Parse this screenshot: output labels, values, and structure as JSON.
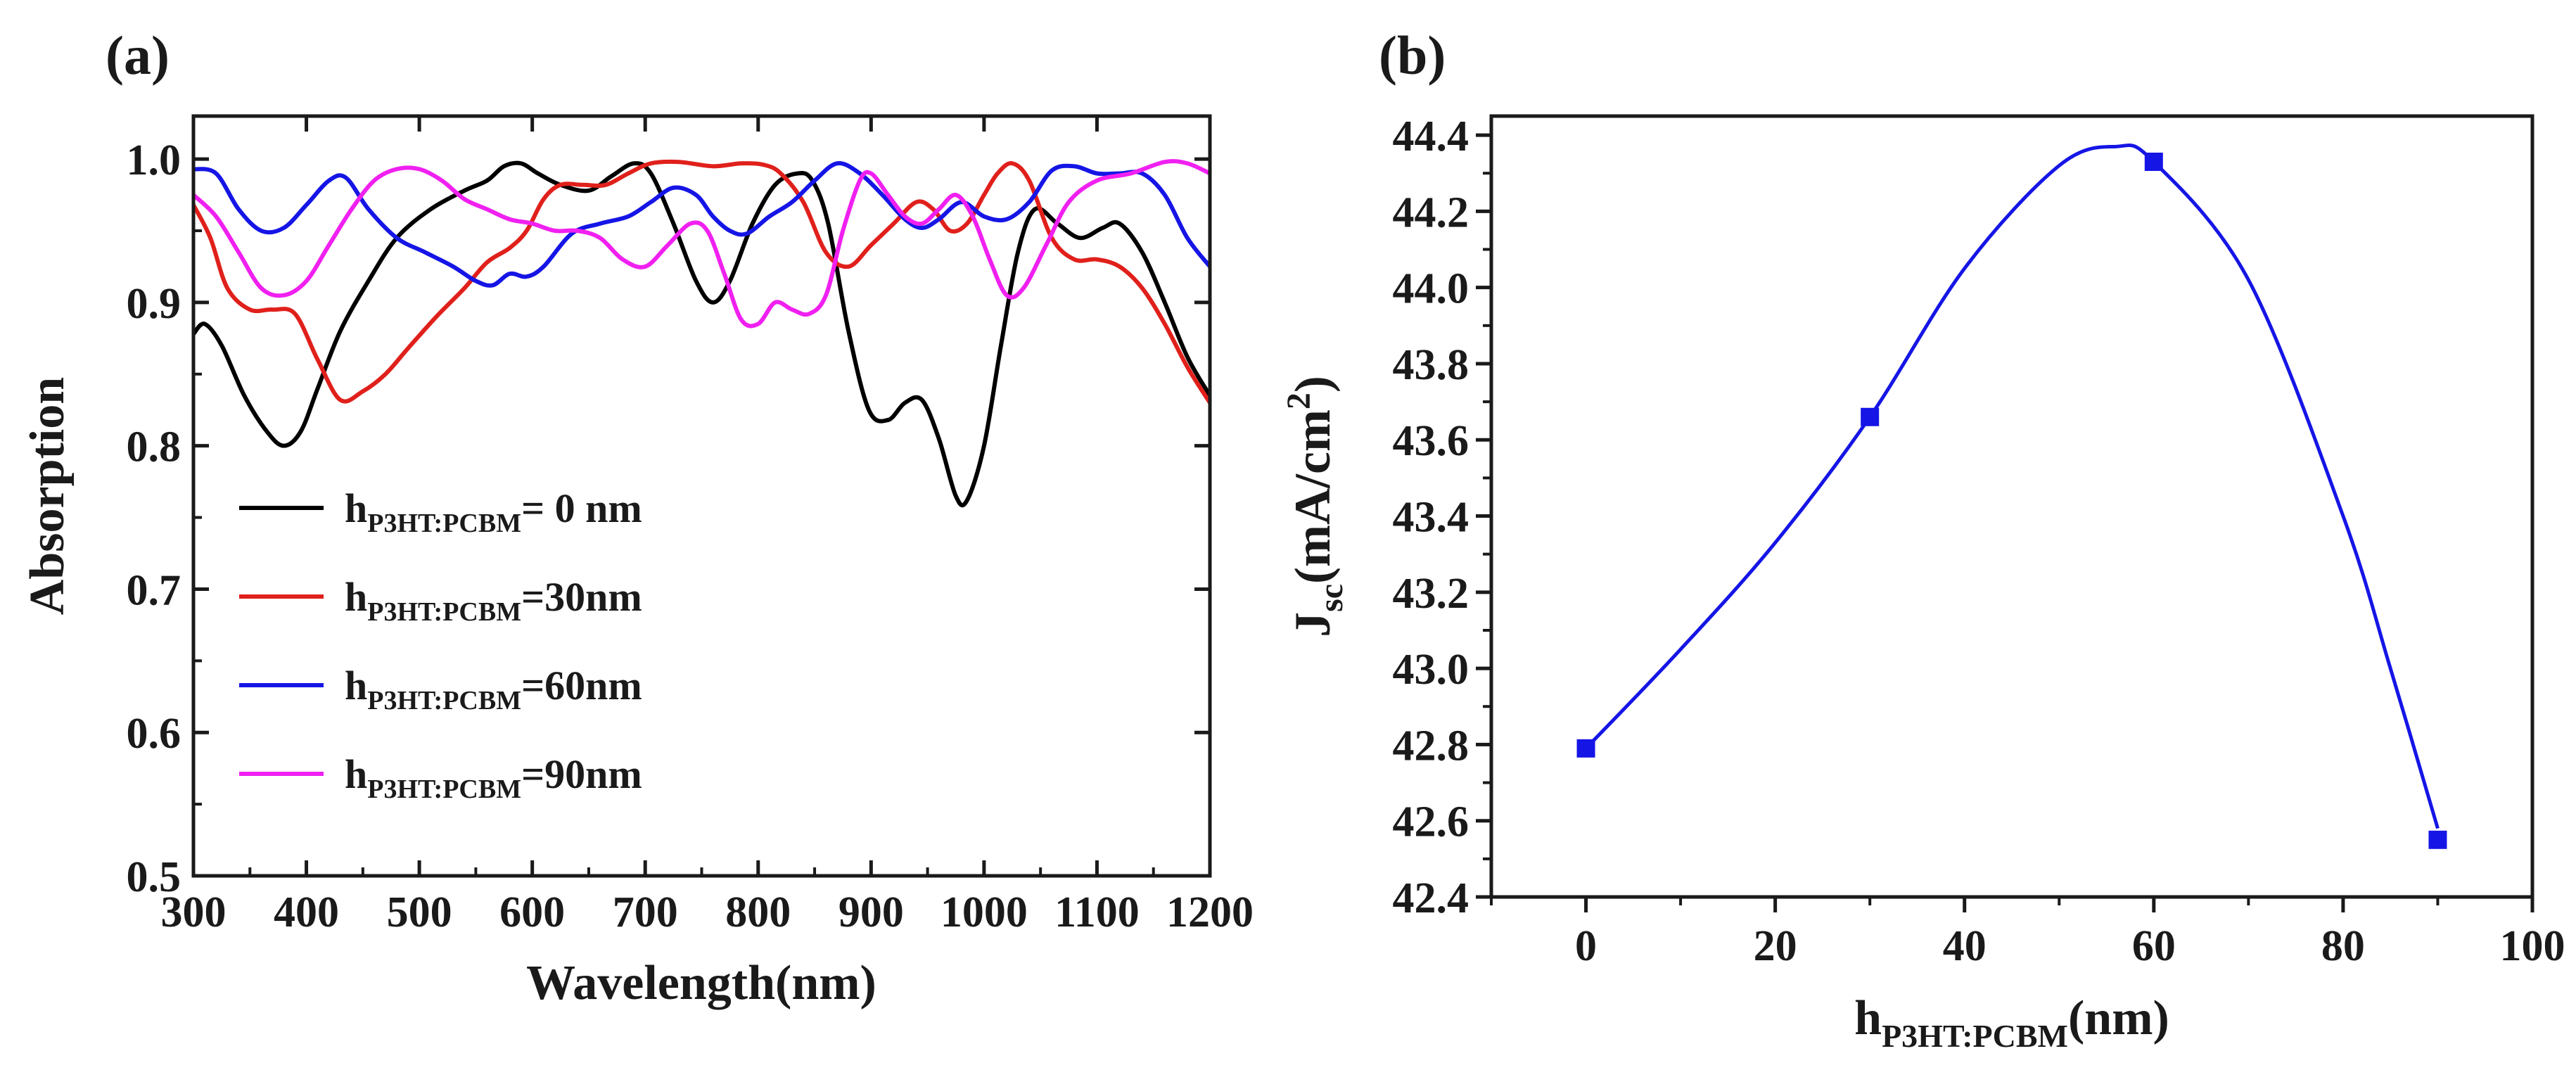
{
  "chart_data": [
    {
      "type": "line",
      "panel_label": "(a)",
      "xlabel": "Wavelength(nm)",
      "ylabel": "Absorption",
      "xlim": [
        300,
        1200
      ],
      "ylim": [
        0.5,
        1.03
      ],
      "x_ticks": [
        300,
        400,
        500,
        600,
        700,
        800,
        900,
        1000,
        1100,
        1200
      ],
      "x_tick_labels": [
        "300",
        "400",
        "500",
        "600",
        "700",
        "800",
        "900",
        "1000",
        "1100",
        "1200"
      ],
      "y_ticks": [
        0.5,
        0.6,
        0.7,
        0.8,
        0.9,
        1.0
      ],
      "y_tick_labels": [
        "0.5",
        "0.6",
        "0.7",
        "0.8",
        "0.9",
        "1.0"
      ],
      "legend_position": "center-left",
      "legend_base": "h",
      "legend_sub": "P3HT:PCBM",
      "series": [
        {
          "name": "h_P3HT:PCBM= 0 nm",
          "legend_tail": "= 0 nm",
          "color": "#000000",
          "points": [
            [
              300,
              0.878
            ],
            [
              310,
              0.885
            ],
            [
              325,
              0.87
            ],
            [
              345,
              0.835
            ],
            [
              365,
              0.81
            ],
            [
              380,
              0.8
            ],
            [
              395,
              0.81
            ],
            [
              410,
              0.84
            ],
            [
              430,
              0.88
            ],
            [
              455,
              0.915
            ],
            [
              480,
              0.945
            ],
            [
              510,
              0.965
            ],
            [
              540,
              0.978
            ],
            [
              560,
              0.985
            ],
            [
              575,
              0.995
            ],
            [
              590,
              0.997
            ],
            [
              605,
              0.99
            ],
            [
              625,
              0.982
            ],
            [
              650,
              0.978
            ],
            [
              670,
              0.988
            ],
            [
              690,
              0.997
            ],
            [
              705,
              0.99
            ],
            [
              725,
              0.955
            ],
            [
              745,
              0.915
            ],
            [
              760,
              0.9
            ],
            [
              775,
              0.915
            ],
            [
              795,
              0.955
            ],
            [
              815,
              0.982
            ],
            [
              835,
              0.99
            ],
            [
              848,
              0.985
            ],
            [
              862,
              0.955
            ],
            [
              880,
              0.88
            ],
            [
              898,
              0.825
            ],
            [
              915,
              0.818
            ],
            [
              930,
              0.83
            ],
            [
              945,
              0.832
            ],
            [
              960,
              0.805
            ],
            [
              975,
              0.765
            ],
            [
              985,
              0.762
            ],
            [
              1000,
              0.8
            ],
            [
              1015,
              0.87
            ],
            [
              1030,
              0.935
            ],
            [
              1045,
              0.965
            ],
            [
              1065,
              0.955
            ],
            [
              1085,
              0.945
            ],
            [
              1105,
              0.952
            ],
            [
              1120,
              0.955
            ],
            [
              1140,
              0.935
            ],
            [
              1160,
              0.9
            ],
            [
              1180,
              0.862
            ],
            [
              1200,
              0.835
            ]
          ]
        },
        {
          "name": "h_P3HT:PCBM=30nm",
          "legend_tail": "=30nm",
          "color": "#e0201b",
          "points": [
            [
              300,
              0.968
            ],
            [
              315,
              0.945
            ],
            [
              330,
              0.91
            ],
            [
              350,
              0.895
            ],
            [
              370,
              0.895
            ],
            [
              390,
              0.892
            ],
            [
              410,
              0.86
            ],
            [
              430,
              0.832
            ],
            [
              450,
              0.838
            ],
            [
              470,
              0.85
            ],
            [
              490,
              0.868
            ],
            [
              515,
              0.89
            ],
            [
              540,
              0.91
            ],
            [
              560,
              0.928
            ],
            [
              580,
              0.938
            ],
            [
              595,
              0.95
            ],
            [
              610,
              0.972
            ],
            [
              625,
              0.982
            ],
            [
              645,
              0.982
            ],
            [
              665,
              0.982
            ],
            [
              685,
              0.99
            ],
            [
              705,
              0.997
            ],
            [
              730,
              0.998
            ],
            [
              760,
              0.995
            ],
            [
              785,
              0.997
            ],
            [
              805,
              0.996
            ],
            [
              820,
              0.99
            ],
            [
              840,
              0.97
            ],
            [
              860,
              0.935
            ],
            [
              880,
              0.925
            ],
            [
              900,
              0.94
            ],
            [
              920,
              0.955
            ],
            [
              940,
              0.97
            ],
            [
              955,
              0.965
            ],
            [
              970,
              0.95
            ],
            [
              985,
              0.955
            ],
            [
              1000,
              0.975
            ],
            [
              1012,
              0.99
            ],
            [
              1025,
              0.997
            ],
            [
              1040,
              0.985
            ],
            [
              1060,
              0.945
            ],
            [
              1080,
              0.93
            ],
            [
              1100,
              0.93
            ],
            [
              1120,
              0.925
            ],
            [
              1140,
              0.91
            ],
            [
              1160,
              0.885
            ],
            [
              1180,
              0.855
            ],
            [
              1200,
              0.83
            ]
          ]
        },
        {
          "name": "h_P3HT:PCBM=60nm",
          "legend_tail": "=60nm",
          "color": "#1515e6",
          "points": [
            [
              300,
              0.993
            ],
            [
              320,
              0.99
            ],
            [
              340,
              0.965
            ],
            [
              360,
              0.95
            ],
            [
              380,
              0.952
            ],
            [
              400,
              0.968
            ],
            [
              420,
              0.985
            ],
            [
              435,
              0.987
            ],
            [
              455,
              0.965
            ],
            [
              480,
              0.945
            ],
            [
              505,
              0.935
            ],
            [
              530,
              0.925
            ],
            [
              550,
              0.915
            ],
            [
              565,
              0.912
            ],
            [
              580,
              0.92
            ],
            [
              595,
              0.918
            ],
            [
              610,
              0.925
            ],
            [
              635,
              0.948
            ],
            [
              660,
              0.955
            ],
            [
              685,
              0.96
            ],
            [
              705,
              0.97
            ],
            [
              725,
              0.98
            ],
            [
              745,
              0.975
            ],
            [
              760,
              0.96
            ],
            [
              775,
              0.95
            ],
            [
              790,
              0.948
            ],
            [
              810,
              0.96
            ],
            [
              830,
              0.97
            ],
            [
              850,
              0.985
            ],
            [
              870,
              0.997
            ],
            [
              890,
              0.99
            ],
            [
              910,
              0.975
            ],
            [
              930,
              0.958
            ],
            [
              945,
              0.952
            ],
            [
              960,
              0.958
            ],
            [
              980,
              0.97
            ],
            [
              1000,
              0.96
            ],
            [
              1020,
              0.958
            ],
            [
              1040,
              0.97
            ],
            [
              1060,
              0.992
            ],
            [
              1080,
              0.995
            ],
            [
              1100,
              0.99
            ],
            [
              1120,
              0.99
            ],
            [
              1140,
              0.99
            ],
            [
              1160,
              0.975
            ],
            [
              1180,
              0.945
            ],
            [
              1200,
              0.925
            ]
          ]
        },
        {
          "name": "h_P3HT:PCBM=90nm",
          "legend_tail": "=90nm",
          "color": "#f020f0",
          "points": [
            [
              300,
              0.975
            ],
            [
              320,
              0.96
            ],
            [
              340,
              0.935
            ],
            [
              360,
              0.91
            ],
            [
              380,
              0.905
            ],
            [
              400,
              0.915
            ],
            [
              420,
              0.94
            ],
            [
              440,
              0.965
            ],
            [
              460,
              0.985
            ],
            [
              480,
              0.993
            ],
            [
              500,
              0.993
            ],
            [
              520,
              0.985
            ],
            [
              540,
              0.972
            ],
            [
              560,
              0.965
            ],
            [
              580,
              0.958
            ],
            [
              600,
              0.955
            ],
            [
              620,
              0.95
            ],
            [
              640,
              0.95
            ],
            [
              660,
              0.945
            ],
            [
              680,
              0.93
            ],
            [
              700,
              0.925
            ],
            [
              720,
              0.94
            ],
            [
              740,
              0.955
            ],
            [
              755,
              0.95
            ],
            [
              770,
              0.92
            ],
            [
              785,
              0.888
            ],
            [
              800,
              0.885
            ],
            [
              815,
              0.9
            ],
            [
              830,
              0.895
            ],
            [
              845,
              0.892
            ],
            [
              860,
              0.905
            ],
            [
              875,
              0.95
            ],
            [
              890,
              0.985
            ],
            [
              900,
              0.99
            ],
            [
              915,
              0.975
            ],
            [
              930,
              0.96
            ],
            [
              945,
              0.955
            ],
            [
              960,
              0.965
            ],
            [
              975,
              0.975
            ],
            [
              990,
              0.96
            ],
            [
              1005,
              0.93
            ],
            [
              1020,
              0.905
            ],
            [
              1035,
              0.91
            ],
            [
              1055,
              0.94
            ],
            [
              1075,
              0.97
            ],
            [
              1100,
              0.985
            ],
            [
              1130,
              0.99
            ],
            [
              1160,
              0.998
            ],
            [
              1180,
              0.997
            ],
            [
              1200,
              0.99
            ]
          ]
        }
      ]
    },
    {
      "type": "line",
      "panel_label": "(b)",
      "xlabel_base": "h",
      "xlabel_sub": "P3HT:PCBM",
      "xlabel_tail": "(nm)",
      "ylabel_base": "J",
      "ylabel_sub": "sc",
      "ylabel_mid": "(mA/cm",
      "ylabel_sup": "2",
      "ylabel_end": ")",
      "xlim": [
        -10,
        100
      ],
      "ylim": [
        42.4,
        44.45
      ],
      "x_ticks": [
        0,
        20,
        40,
        60,
        80,
        100
      ],
      "x_tick_labels": [
        "0",
        "20",
        "40",
        "60",
        "80",
        "100"
      ],
      "y_ticks": [
        42.4,
        42.6,
        42.8,
        43.0,
        43.2,
        43.4,
        43.6,
        43.8,
        44.0,
        44.2,
        44.4
      ],
      "y_tick_labels": [
        "42.4",
        "42.6",
        "42.8",
        "43.0",
        "43.2",
        "43.4",
        "43.6",
        "43.8",
        "44.0",
        "44.2",
        "44.4"
      ],
      "color": "#1515e6",
      "series": [
        {
          "name": "Jsc",
          "x": [
            0,
            30,
            60,
            90
          ],
          "y": [
            42.79,
            43.66,
            44.33,
            42.55
          ]
        }
      ],
      "fit_curve": [
        [
          0,
          42.79
        ],
        [
          10,
          43.05
        ],
        [
          20,
          43.33
        ],
        [
          30,
          43.66
        ],
        [
          40,
          44.05
        ],
        [
          50,
          44.32
        ],
        [
          56,
          44.37
        ],
        [
          60,
          44.33
        ],
        [
          70,
          44.02
        ],
        [
          80,
          43.4
        ],
        [
          85,
          43.0
        ],
        [
          90,
          42.58
        ]
      ]
    }
  ]
}
